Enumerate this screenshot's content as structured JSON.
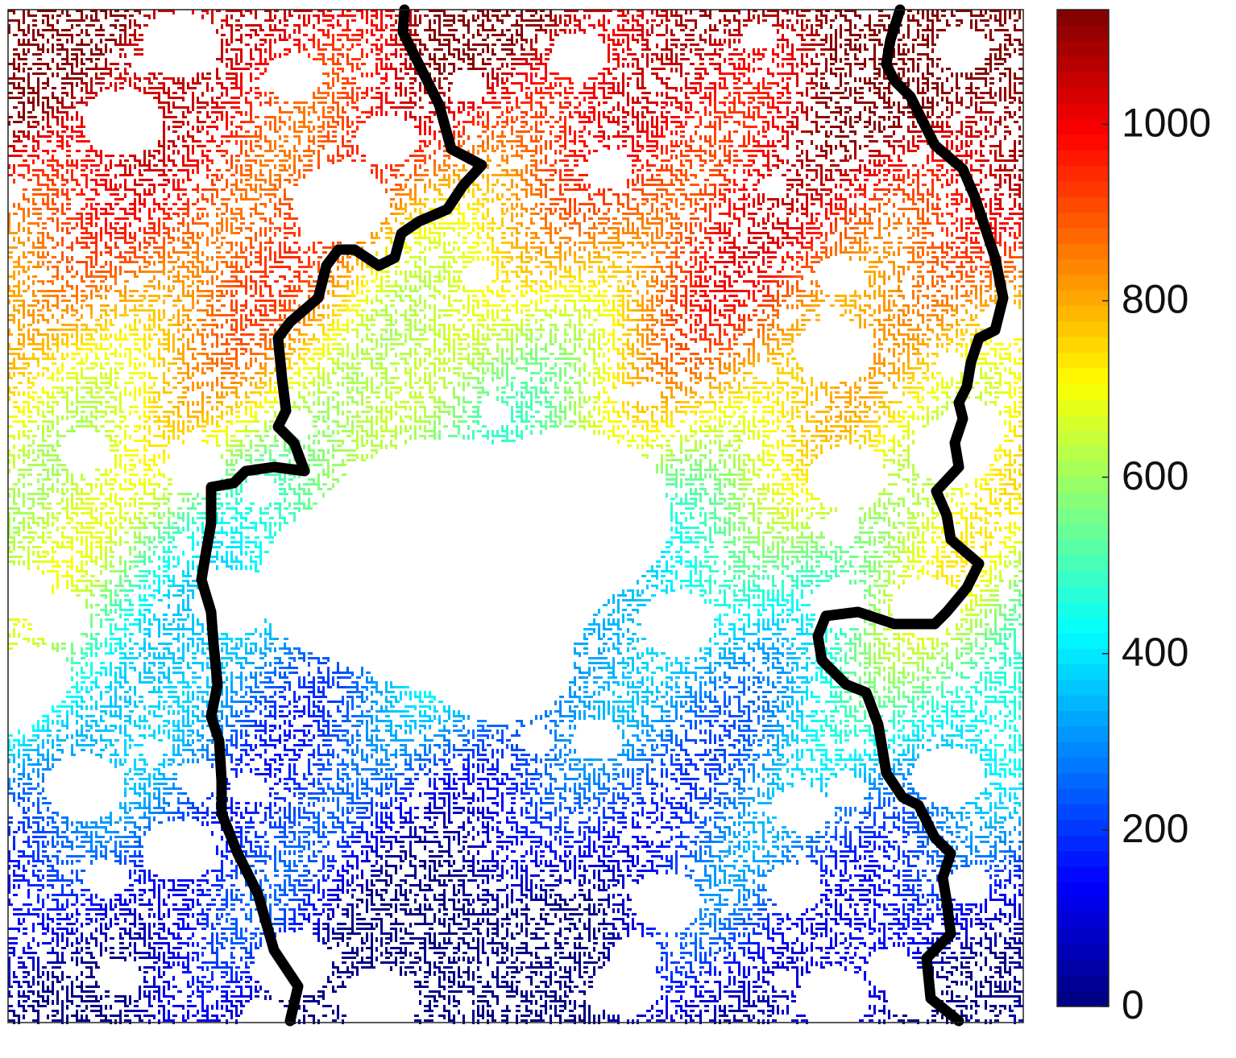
{
  "chart_data": {
    "type": "heatmap",
    "colormap": "jet",
    "levels": 64,
    "clim": [
      0,
      1130
    ],
    "cticks": [
      0,
      200,
      400,
      600,
      800,
      1000
    ]
  }
}
